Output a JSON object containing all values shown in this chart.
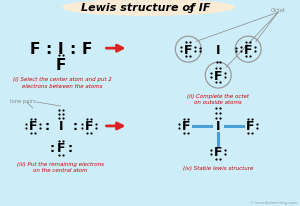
{
  "bg_color": "#cdeef8",
  "title_bg": "#faebd7",
  "title_text": "Lewis structure of IF",
  "title_sub": "3",
  "red_arrow_color": "#dd2222",
  "bond_color": "#4a9fd4",
  "red_text_color": "#cc0000",
  "gray_color": "#888888",
  "circle_color": "#999999",
  "watermark": "© knordislearning.com",
  "panel1_caption1": "(i) Select the center atom and put 2",
  "panel1_caption2": "electrons between the atoms",
  "panel2_caption1": "(ii) Complete the octet",
  "panel2_caption2": "on outside atoms",
  "panel3_caption1": "(iii) Put the remaining electrons",
  "panel3_caption2": "on the central atom",
  "panel4_caption": "(iv) Stable lewis structure"
}
